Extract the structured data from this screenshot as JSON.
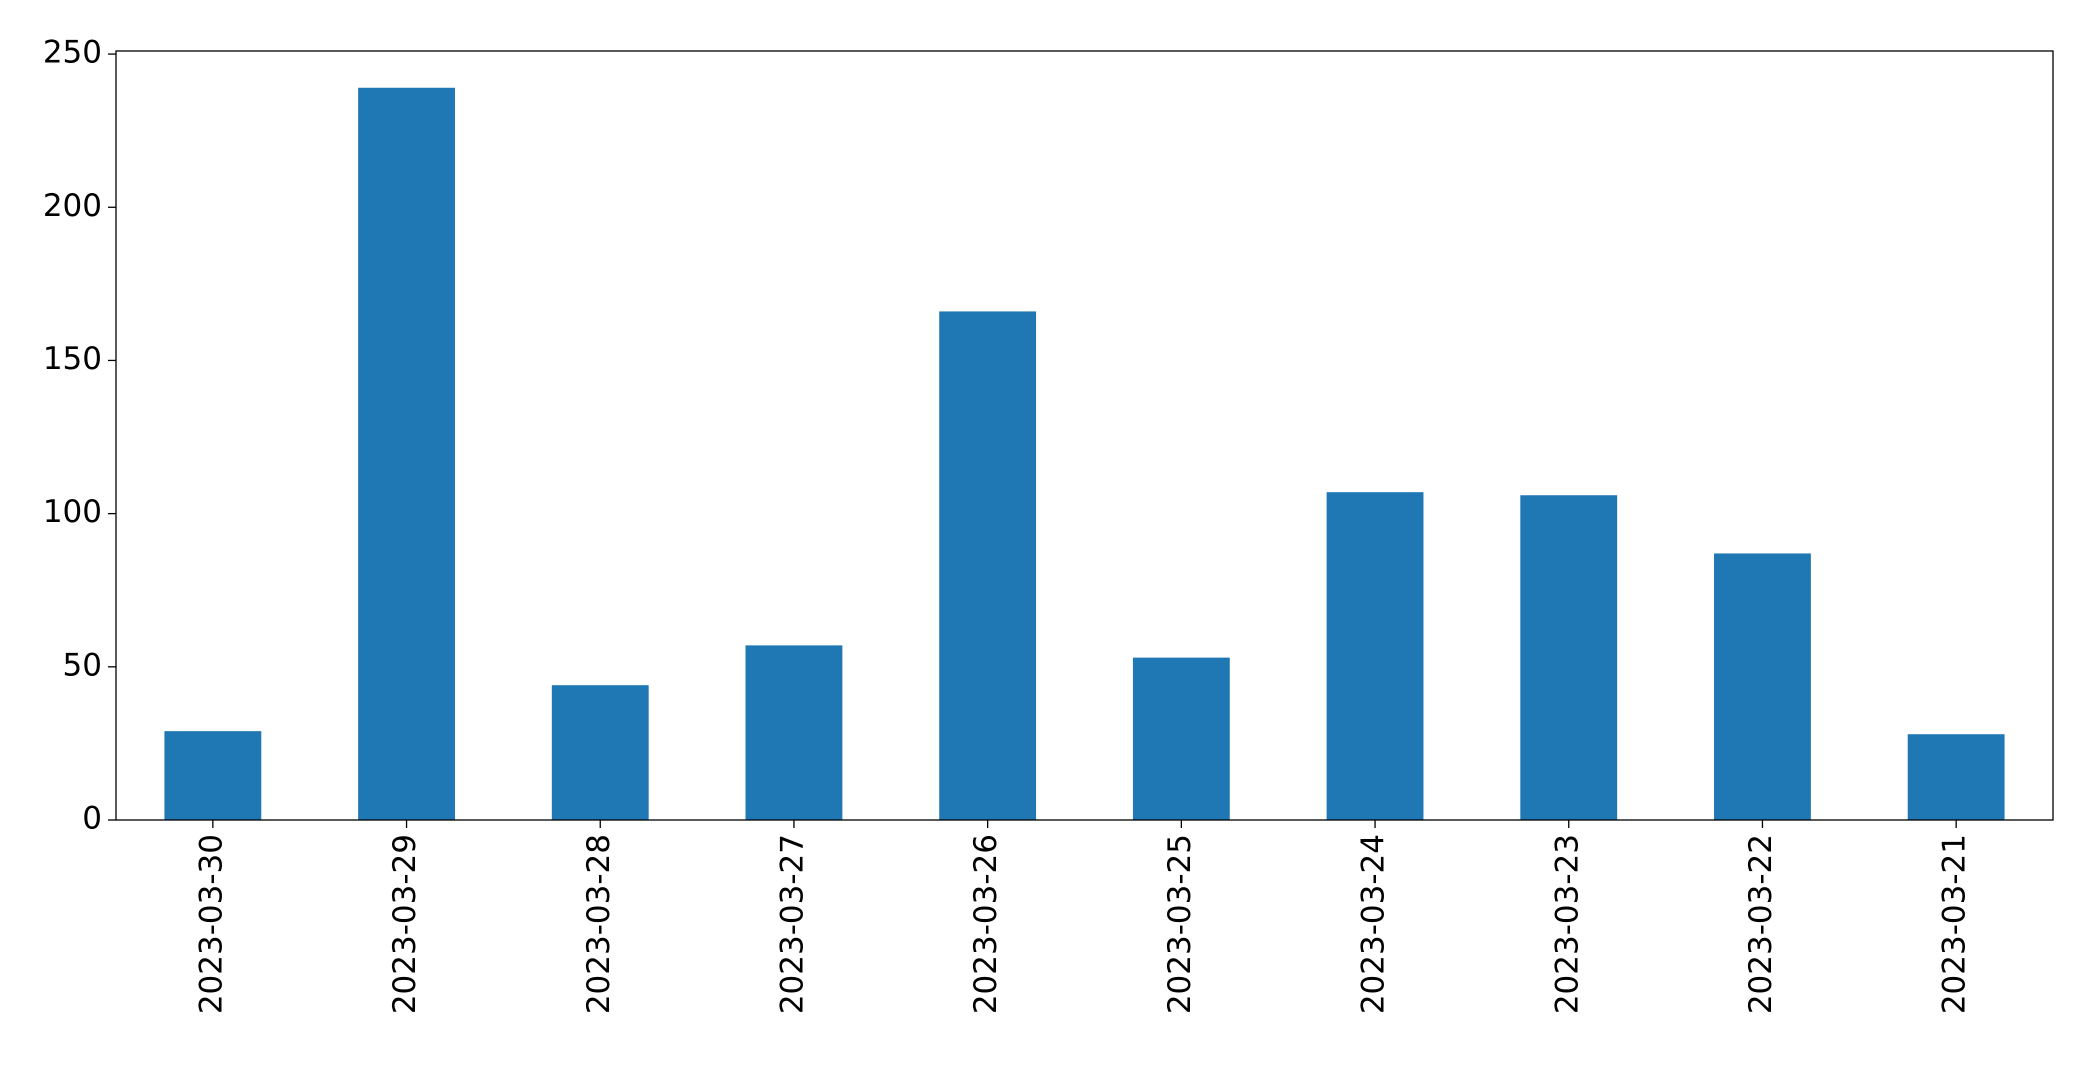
{
  "chart_data": {
    "type": "bar",
    "categories": [
      "2023-03-30",
      "2023-03-29",
      "2023-03-28",
      "2023-03-27",
      "2023-03-26",
      "2023-03-25",
      "2023-03-24",
      "2023-03-23",
      "2023-03-22",
      "2023-03-21"
    ],
    "values": [
      29,
      239,
      44,
      57,
      166,
      53,
      107,
      106,
      87,
      28
    ],
    "color": "#1f77b4",
    "ylim": [
      0,
      251
    ],
    "yticks": [
      0,
      50,
      100,
      150,
      200,
      250
    ],
    "grid": false
  }
}
